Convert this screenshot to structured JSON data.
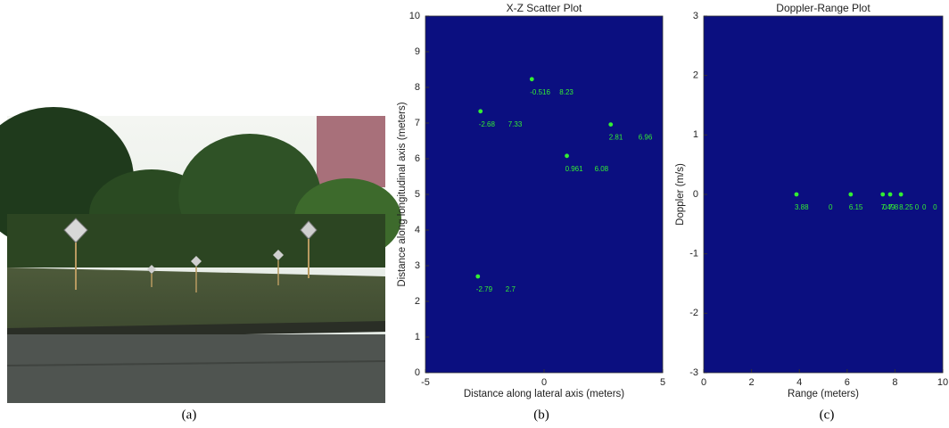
{
  "captions": [
    "(a)",
    "(b)",
    "(c)"
  ],
  "chart_data": [
    {
      "type": "scatter",
      "title": "X-Z Scatter Plot",
      "x_label": "Distance along lateral axis (meters)",
      "y_label": "Distance along longitudinal axis (meters)",
      "x": [
        -2.68,
        -0.516,
        2.81,
        0.961,
        -2.79
      ],
      "y": [
        7.33,
        8.23,
        6.96,
        6.08,
        2.7
      ],
      "color": "#33ee33",
      "background": "#0b0f80",
      "xlim": [
        -5,
        5
      ],
      "xticks": [
        -5,
        0,
        5
      ],
      "ylim": [
        0,
        10
      ],
      "yticks": [
        0,
        1,
        2,
        3,
        4,
        5,
        6,
        7,
        8,
        9,
        10
      ]
    },
    {
      "type": "scatter",
      "title": "Doppler-Range Plot",
      "x_label": "Range (meters)",
      "y_label": "Doppler (m/s)",
      "x": [
        3.88,
        6.15,
        7.49,
        7.8,
        8.25
      ],
      "y": [
        0,
        0,
        0,
        0,
        0
      ],
      "color": "#33ee33",
      "background": "#0b0f80",
      "xlim": [
        0,
        10
      ],
      "xticks": [
        0,
        2,
        4,
        6,
        8,
        10
      ],
      "ylim": [
        -3,
        3
      ],
      "yticks": [
        -3,
        -2,
        -1,
        0,
        1,
        2,
        3
      ]
    }
  ]
}
